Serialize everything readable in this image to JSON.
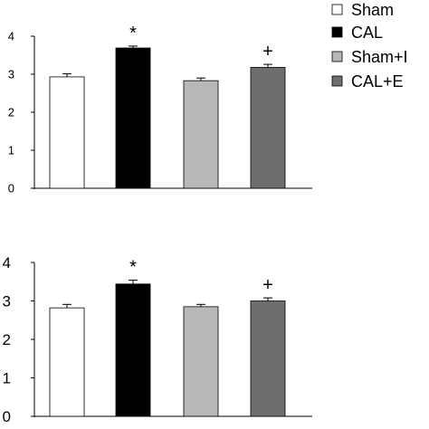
{
  "legend": [
    {
      "label": "Sham",
      "color": "#ffffff"
    },
    {
      "label": "CAL",
      "color": "#000000"
    },
    {
      "label": "Sham+I",
      "color": "#b8b8b8"
    },
    {
      "label": "CAL+E",
      "color": "#6e6e6e"
    }
  ],
  "chart_data": [
    {
      "type": "bar",
      "categories": [
        "Sham",
        "CAL",
        "Sham+I",
        "CAL+E"
      ],
      "values": [
        2.93,
        3.69,
        2.83,
        3.18
      ],
      "errors": [
        0.08,
        0.05,
        0.07,
        0.08
      ],
      "colors": [
        "#ffffff",
        "#000000",
        "#b8b8b8",
        "#6e6e6e"
      ],
      "annotations": [
        "",
        "*",
        "",
        "+"
      ],
      "yticks": [
        "0",
        "1",
        "2",
        "3",
        "4"
      ],
      "ylim": [
        0,
        4
      ],
      "grid": false,
      "legend": "top-right"
    },
    {
      "type": "bar",
      "categories": [
        "Sham",
        "CAL",
        "Sham+I",
        "CAL+E"
      ],
      "values": [
        2.82,
        3.44,
        2.85,
        3.0
      ],
      "errors": [
        0.09,
        0.1,
        0.06,
        0.08
      ],
      "colors": [
        "#ffffff",
        "#000000",
        "#b8b8b8",
        "#6e6e6e"
      ],
      "annotations": [
        "",
        "*",
        "",
        "+"
      ],
      "yticks": [
        "0",
        "1",
        "2",
        "3",
        "4"
      ],
      "ylim": [
        0,
        4
      ],
      "grid": false,
      "legend": "none"
    }
  ]
}
